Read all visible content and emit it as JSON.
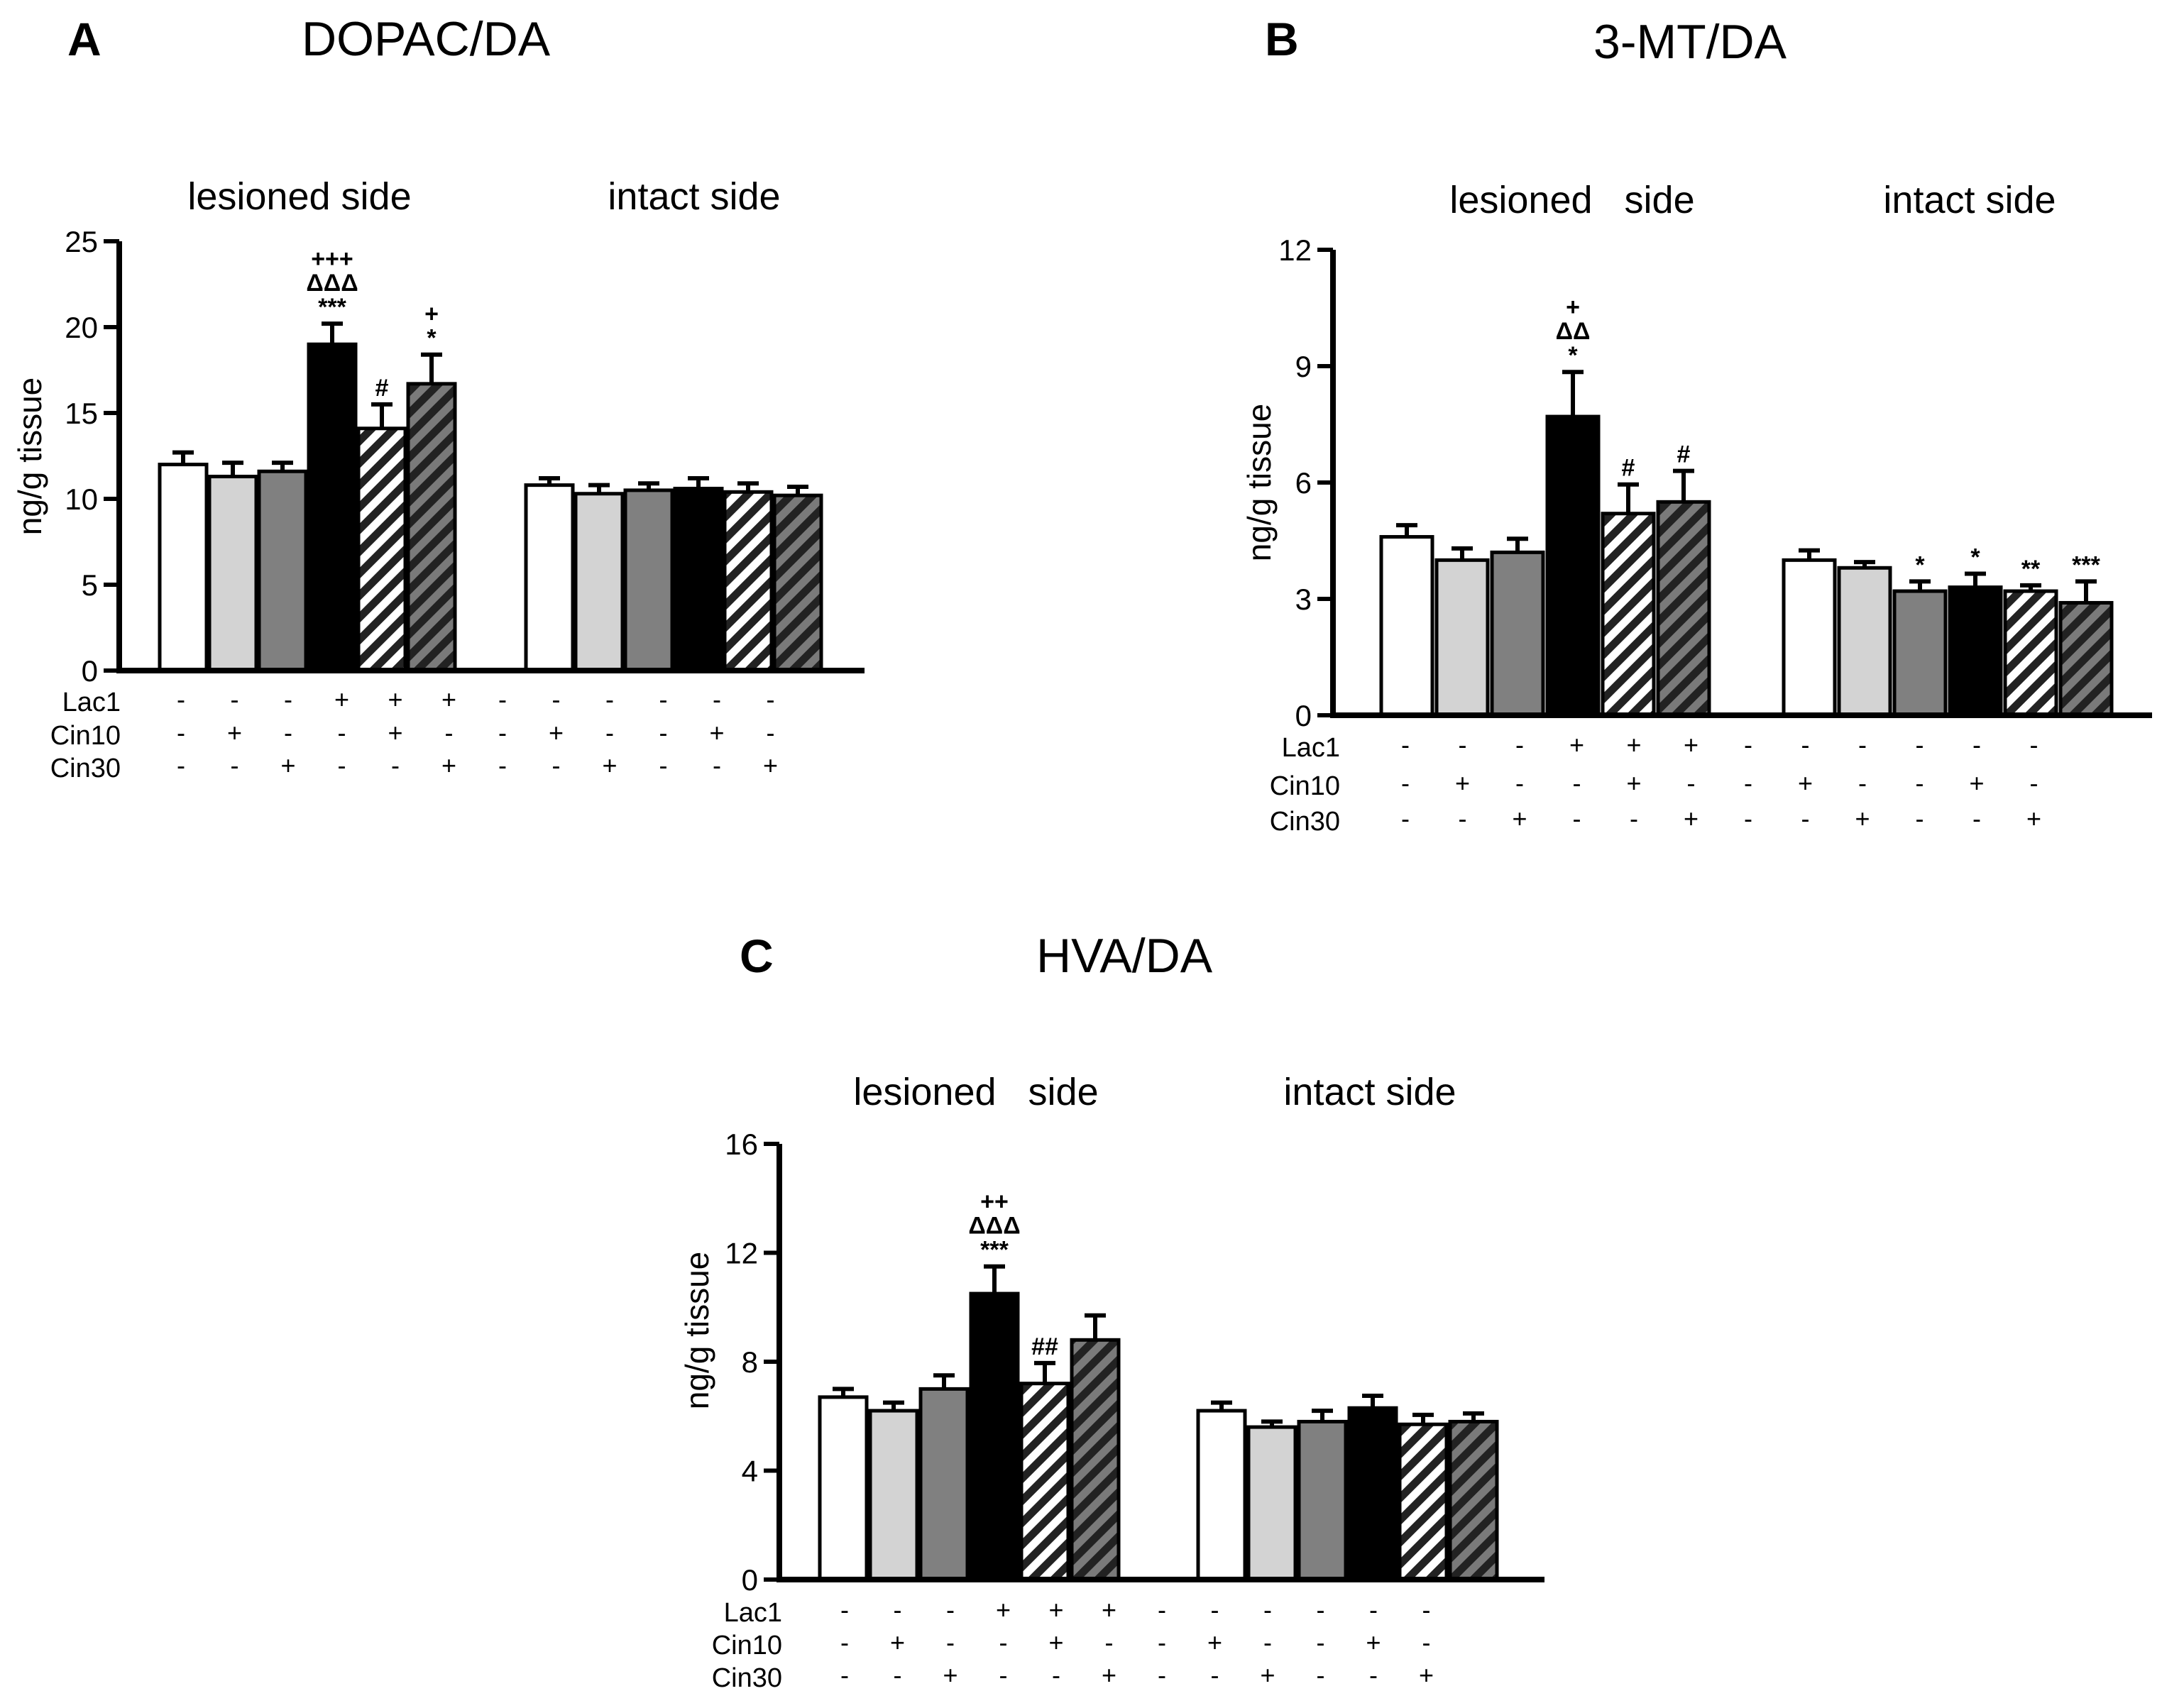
{
  "colors": {
    "group_fills": [
      "#ffffff",
      "#d3d3d3",
      "#808080",
      "#000000",
      "hatch-light",
      "hatch-dark"
    ],
    "stroke": "#000000"
  },
  "chart_data": [
    {
      "type": "bar",
      "letter": "A",
      "title": "DOPAC/DA",
      "ylabel": "ng/g tissue",
      "ylim": [
        0,
        25
      ],
      "yticks": [
        "0",
        "5",
        "10",
        "15",
        "20",
        "25"
      ],
      "side_labels": [
        "lesioned side",
        "intact side"
      ],
      "treatment_rows": [
        "Lac1",
        "Cin10",
        "Cin30"
      ],
      "groups": [
        {
          "name": "lesioned side",
          "values": [
            12.0,
            11.3,
            11.6,
            19.0,
            14.1,
            16.7
          ],
          "errors": [
            0.7,
            0.8,
            0.5,
            1.2,
            1.4,
            1.7
          ],
          "annotations": [
            [],
            [],
            [],
            [
              "+++",
              "ΔΔΔ",
              "***"
            ],
            [
              "#"
            ],
            [
              "+",
              "*"
            ]
          ]
        },
        {
          "name": "intact side",
          "values": [
            10.8,
            10.3,
            10.5,
            10.6,
            10.4,
            10.2
          ],
          "errors": [
            0.4,
            0.5,
            0.4,
            0.6,
            0.5,
            0.5
          ],
          "annotations": [
            [],
            [],
            [],
            [],
            [],
            []
          ]
        }
      ],
      "treatments": {
        "Lac1": [
          "-",
          "-",
          "-",
          "+",
          "+",
          "+",
          "-",
          "-",
          "-",
          "-",
          "-",
          "-"
        ],
        "Cin10": [
          "-",
          "+",
          "-",
          "-",
          "+",
          "-",
          "-",
          "+",
          "-",
          "-",
          "+",
          "-"
        ],
        "Cin30": [
          "-",
          "-",
          "+",
          "-",
          "-",
          "+",
          "-",
          "-",
          "+",
          "-",
          "-",
          "+"
        ]
      }
    },
    {
      "type": "bar",
      "letter": "B",
      "title": "3-MT/DA",
      "ylabel": "ng/g tissue",
      "ylim": [
        0,
        12
      ],
      "yticks": [
        "0",
        "3",
        "6",
        "9",
        "12"
      ],
      "side_labels": [
        "lesioned   side",
        "intact side"
      ],
      "treatment_rows": [
        "Lac1",
        "Cin10",
        "Cin30"
      ],
      "groups": [
        {
          "name": "lesioned side",
          "values": [
            4.6,
            4.0,
            4.2,
            7.7,
            5.2,
            5.5
          ],
          "errors": [
            0.3,
            0.3,
            0.35,
            1.15,
            0.75,
            0.8
          ],
          "annotations": [
            [],
            [],
            [],
            [
              "+",
              "ΔΔ",
              "*"
            ],
            [
              "#"
            ],
            [
              "#"
            ]
          ]
        },
        {
          "name": "intact side",
          "values": [
            4.0,
            3.8,
            3.2,
            3.3,
            3.2,
            2.9
          ],
          "errors": [
            0.25,
            0.15,
            0.25,
            0.35,
            0.15,
            0.55
          ],
          "annotations": [
            [],
            [],
            [
              "*"
            ],
            [
              "*"
            ],
            [
              "**"
            ],
            [
              "***"
            ]
          ]
        }
      ],
      "treatments": {
        "Lac1": [
          "-",
          "-",
          "-",
          "+",
          "+",
          "+",
          "-",
          "-",
          "-",
          "-",
          "-",
          "-"
        ],
        "Cin10": [
          "-",
          "+",
          "-",
          "-",
          "+",
          "-",
          "-",
          "+",
          "-",
          "-",
          "+",
          "-"
        ],
        "Cin30": [
          "-",
          "-",
          "+",
          "-",
          "-",
          "+",
          "-",
          "-",
          "+",
          "-",
          "-",
          "+"
        ]
      }
    },
    {
      "type": "bar",
      "letter": "C",
      "title": "HVA/DA",
      "ylabel": "ng/g tissue",
      "ylim": [
        0,
        16
      ],
      "yticks": [
        "0",
        "4",
        "8",
        "12",
        "16"
      ],
      "side_labels": [
        "lesioned   side",
        "intact side"
      ],
      "treatment_rows": [
        "Lac1",
        "Cin10",
        "Cin30"
      ],
      "groups": [
        {
          "name": "lesioned side",
          "values": [
            6.7,
            6.2,
            7.0,
            10.5,
            7.2,
            8.8
          ],
          "errors": [
            0.3,
            0.3,
            0.5,
            1.0,
            0.75,
            0.9
          ],
          "annotations": [
            [],
            [],
            [],
            [
              "++",
              "ΔΔΔ",
              "***"
            ],
            [
              "##"
            ],
            []
          ]
        },
        {
          "name": "intact side",
          "values": [
            6.2,
            5.6,
            5.8,
            6.3,
            5.7,
            5.8
          ],
          "errors": [
            0.3,
            0.2,
            0.4,
            0.45,
            0.35,
            0.3
          ],
          "annotations": [
            [],
            [],
            [],
            [],
            [],
            []
          ]
        }
      ],
      "treatments": {
        "Lac1": [
          "-",
          "-",
          "-",
          "+",
          "+",
          "+",
          "-",
          "-",
          "-",
          "-",
          "-",
          "-"
        ],
        "Cin10": [
          "-",
          "+",
          "-",
          "-",
          "+",
          "-",
          "-",
          "+",
          "-",
          "-",
          "+",
          "-"
        ],
        "Cin30": [
          "-",
          "-",
          "+",
          "-",
          "-",
          "+",
          "-",
          "-",
          "+",
          "-",
          "-",
          "+"
        ]
      }
    }
  ]
}
